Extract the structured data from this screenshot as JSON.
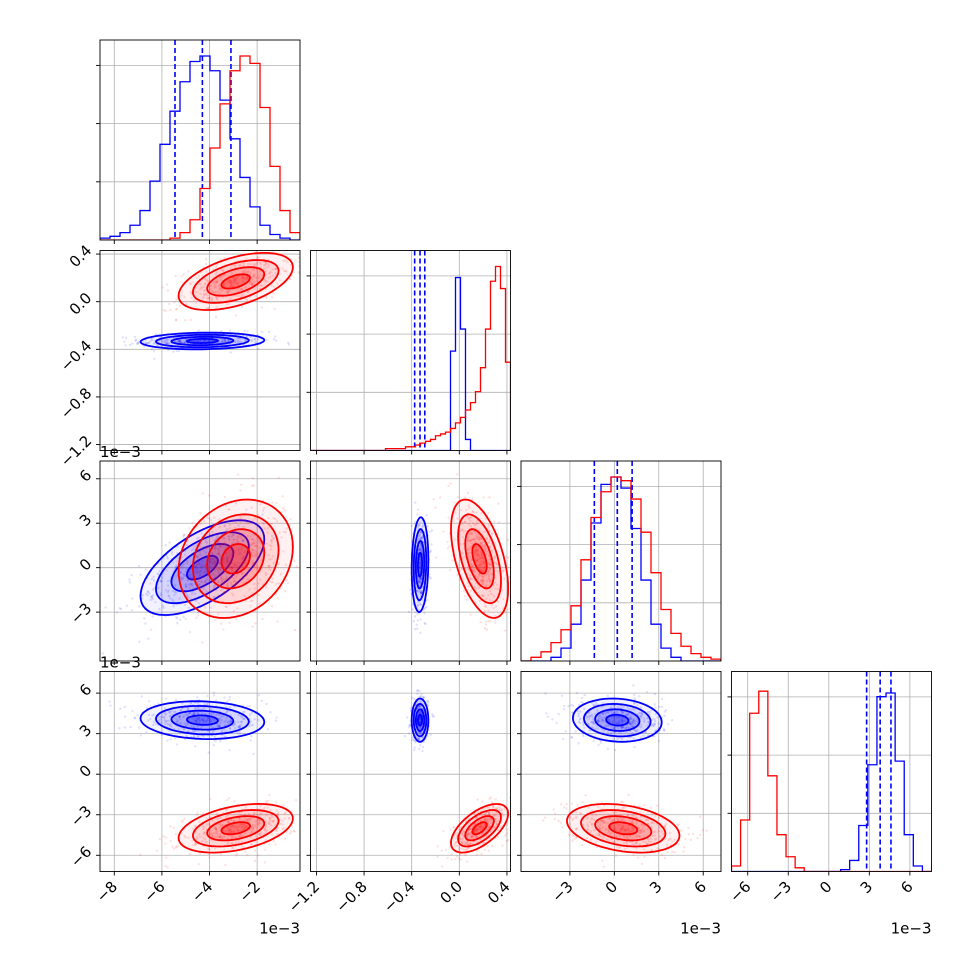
{
  "chart_data": {
    "type": "corner",
    "colors": {
      "series_a": "#0000ff",
      "series_b": "#ff0000",
      "grid": "#b0b0b0"
    },
    "grid": true,
    "parameters": [
      {
        "range": [
          -8.6,
          -0.2
        ],
        "ticks": [
          -8,
          -6,
          -4,
          -2
        ],
        "tick_labels": [
          "−8",
          "−6",
          "−4",
          "−2"
        ],
        "offset_label": "1e−3"
      },
      {
        "range": [
          -1.25,
          0.43
        ],
        "ticks": [
          -1.2,
          -0.8,
          -0.4,
          0.0,
          0.4
        ],
        "tick_labels": [
          "−1.2",
          "−0.8",
          "−0.4",
          "0.0",
          "0.4"
        ],
        "offset_label": ""
      },
      {
        "range": [
          -6.3,
          7.2
        ],
        "ticks": [
          -3,
          0,
          3,
          6
        ],
        "tick_labels": [
          "−3",
          "0",
          "3",
          "6"
        ],
        "offset_label": "1e−3"
      },
      {
        "range": [
          -7.2,
          7.6
        ],
        "ticks": [
          -6,
          -3,
          0,
          3,
          6
        ],
        "tick_labels": [
          "−6",
          "−3",
          "0",
          "3",
          "6"
        ],
        "offset_label": "1e−3"
      }
    ],
    "series": [
      {
        "color": "#0000ff",
        "histograms": [
          [
            1,
            2,
            4,
            8,
            16,
            32,
            52,
            70,
            86,
            97,
            100,
            92,
            76,
            55,
            34,
            18,
            8,
            3,
            1,
            0
          ],
          [
            0,
            0,
            0,
            0,
            0,
            0,
            0,
            0,
            0,
            0,
            0,
            0,
            0,
            0,
            0,
            0,
            0,
            0,
            0,
            0,
            0,
            0,
            0,
            0,
            0,
            0,
            0,
            0,
            54,
            94,
            66,
            6,
            0,
            0,
            0,
            0,
            0,
            0,
            0,
            0
          ],
          [
            0,
            0,
            0,
            2,
            7,
            20,
            44,
            75,
            96,
            100,
            94,
            72,
            44,
            20,
            7,
            2,
            0,
            0,
            0,
            0
          ],
          [
            0,
            0,
            0,
            0,
            0,
            0,
            0,
            0,
            0,
            0,
            0,
            0,
            1,
            6,
            25,
            58,
            95,
            97,
            60,
            20,
            3,
            0
          ]
        ],
        "quantiles": [
          [
            -5.45,
            -4.3,
            -3.1
          ],
          [
            -0.375,
            -0.33,
            -0.29
          ],
          [
            -1.35,
            0.2,
            1.2
          ],
          [
            2.8,
            3.8,
            4.6
          ]
        ],
        "clouds": [
          {
            "x": 0,
            "y": 1,
            "mean": [
              -4.3,
              -0.33
            ],
            "sd": [
              1.3,
              0.035
            ],
            "corr": 0.1
          },
          {
            "x": 0,
            "y": 2,
            "mean": [
              -4.3,
              0.0
            ],
            "sd": [
              1.3,
              1.6
            ],
            "corr": 0.6
          },
          {
            "x": 1,
            "y": 2,
            "mean": [
              -0.33,
              0.2
            ],
            "sd": [
              0.035,
              1.6
            ],
            "corr": 0.1
          },
          {
            "x": 0,
            "y": 3,
            "mean": [
              -4.3,
              4.0
            ],
            "sd": [
              1.3,
              0.7
            ],
            "corr": -0.1
          },
          {
            "x": 1,
            "y": 3,
            "mean": [
              -0.33,
              4.0
            ],
            "sd": [
              0.035,
              0.8
            ],
            "corr": 0.0
          },
          {
            "x": 2,
            "y": 3,
            "mean": [
              0.2,
              4.0
            ],
            "sd": [
              1.5,
              0.8
            ],
            "corr": -0.1
          }
        ]
      },
      {
        "color": "#ff0000",
        "histograms": [
          [
            0,
            0,
            0,
            0,
            0,
            0,
            0,
            1,
            4,
            11,
            28,
            50,
            74,
            92,
            100,
            96,
            72,
            40,
            16,
            4
          ],
          [
            0,
            0,
            0,
            0,
            0,
            0,
            0,
            0,
            0,
            0,
            0,
            0,
            0,
            0,
            0,
            1,
            1,
            1,
            1,
            2,
            2,
            3,
            4,
            5,
            6,
            8,
            9,
            10,
            12,
            15,
            18,
            22,
            26,
            32,
            45,
            66,
            92,
            100,
            88,
            48
          ],
          [
            0,
            2,
            5,
            10,
            17,
            30,
            55,
            78,
            92,
            100,
            98,
            88,
            70,
            48,
            28,
            15,
            8,
            4,
            2,
            1
          ],
          [
            3,
            28,
            86,
            98,
            52,
            20,
            8,
            2,
            0,
            0,
            0,
            0,
            0,
            0,
            0,
            0,
            0,
            0,
            0,
            0,
            0,
            0
          ]
        ],
        "quantiles": [],
        "clouds": [
          {
            "x": 0,
            "y": 1,
            "mean": [
              -2.9,
              0.17
            ],
            "sd": [
              1.2,
              0.12
            ],
            "corr": 0.5
          },
          {
            "x": 0,
            "y": 2,
            "mean": [
              -2.9,
              0.6
            ],
            "sd": [
              1.2,
              2.0
            ],
            "corr": 0.2
          },
          {
            "x": 1,
            "y": 2,
            "mean": [
              0.17,
              0.6
            ],
            "sd": [
              0.12,
              2.0
            ],
            "corr": -0.5
          },
          {
            "x": 0,
            "y": 3,
            "mean": [
              -2.9,
              -4.0
            ],
            "sd": [
              1.2,
              0.9
            ],
            "corr": 0.4
          },
          {
            "x": 1,
            "y": 3,
            "mean": [
              0.17,
              -4.0
            ],
            "sd": [
              0.12,
              0.9
            ],
            "corr": 0.6
          },
          {
            "x": 2,
            "y": 3,
            "mean": [
              0.6,
              -4.0
            ],
            "sd": [
              1.9,
              0.9
            ],
            "corr": -0.3
          }
        ]
      }
    ]
  }
}
